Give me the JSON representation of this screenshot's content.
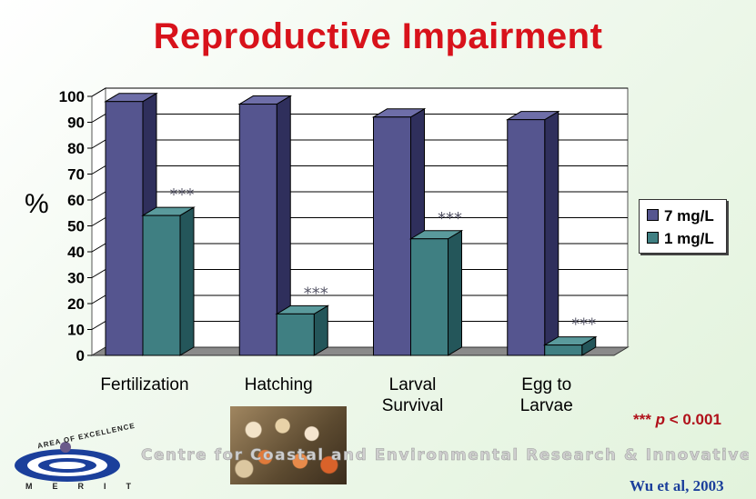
{
  "title": "Reproductive Impairment",
  "y_axis_symbol": "%",
  "significance_note": {
    "stars": "***",
    "p_italic": "p",
    "rest": " < 0.001"
  },
  "citation": "Wu et al,  2003",
  "banner_text": "Centre for Coastal and Environmental Research & Innovative Technology",
  "logo": {
    "arc_text": "AREA OF EXCELLENCE",
    "bottom_text": "MERIT"
  },
  "colors": {
    "title": "#d8121b",
    "series_7": "#55558f",
    "series_1": "#3f7f82",
    "grid": "#000000"
  },
  "chart_data": {
    "type": "bar",
    "categories": [
      "Fertilization",
      "Hatching",
      "Larval Survival",
      "Egg to Larvae"
    ],
    "category_lines": [
      [
        "Fertilization"
      ],
      [
        "Hatching"
      ],
      [
        "Larval",
        "Survival"
      ],
      [
        "Egg to",
        "Larvae"
      ]
    ],
    "series": [
      {
        "name": "7 mg/L",
        "values": [
          98,
          97,
          92,
          91
        ]
      },
      {
        "name": "1 mg/L",
        "values": [
          54,
          16,
          45,
          4
        ]
      }
    ],
    "annotations": [
      "***",
      "***",
      "***",
      "***"
    ],
    "ylim": [
      0,
      100
    ],
    "yticks": [
      0,
      10,
      20,
      30,
      40,
      50,
      60,
      70,
      80,
      90,
      100
    ],
    "ylabel": "%",
    "grid": true,
    "legend": "right"
  }
}
